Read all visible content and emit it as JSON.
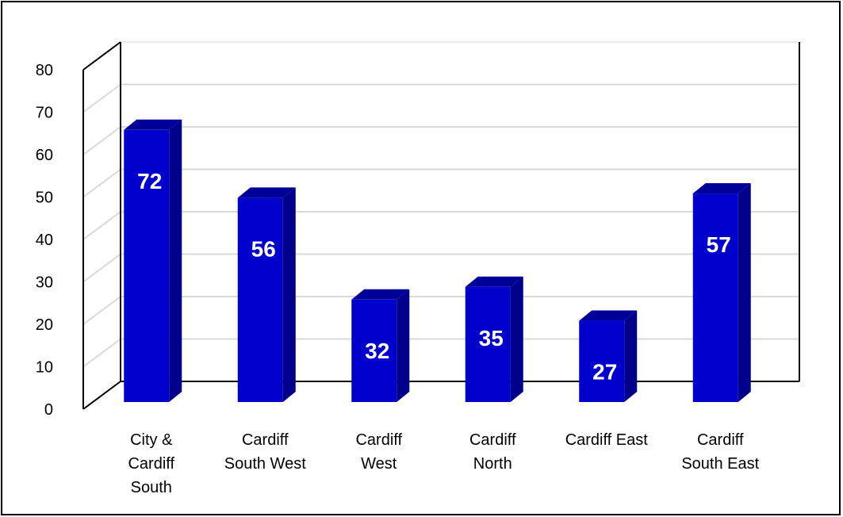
{
  "chart_data": {
    "type": "bar",
    "style": "3d-column",
    "categories": [
      [
        "City &",
        "Cardiff",
        "South"
      ],
      [
        "Cardiff",
        "South West"
      ],
      [
        "Cardiff",
        "West"
      ],
      [
        "Cardiff",
        "North"
      ],
      [
        "Cardiff East"
      ],
      [
        "Cardiff",
        "South East"
      ]
    ],
    "values": [
      72,
      56,
      32,
      35,
      27,
      57
    ],
    "title": "",
    "xlabel": "",
    "ylabel": "",
    "ylim": [
      0,
      80
    ],
    "yticks": [
      0,
      10,
      20,
      30,
      40,
      50,
      60,
      70,
      80
    ],
    "grid": true,
    "data_labels": true,
    "colors": {
      "bar_front": "#0000cc",
      "bar_side": "#00008b",
      "bar_top": "#000099",
      "grid": "#d9d9d9",
      "axis": "#000000",
      "data_label": "#ffffff"
    }
  }
}
